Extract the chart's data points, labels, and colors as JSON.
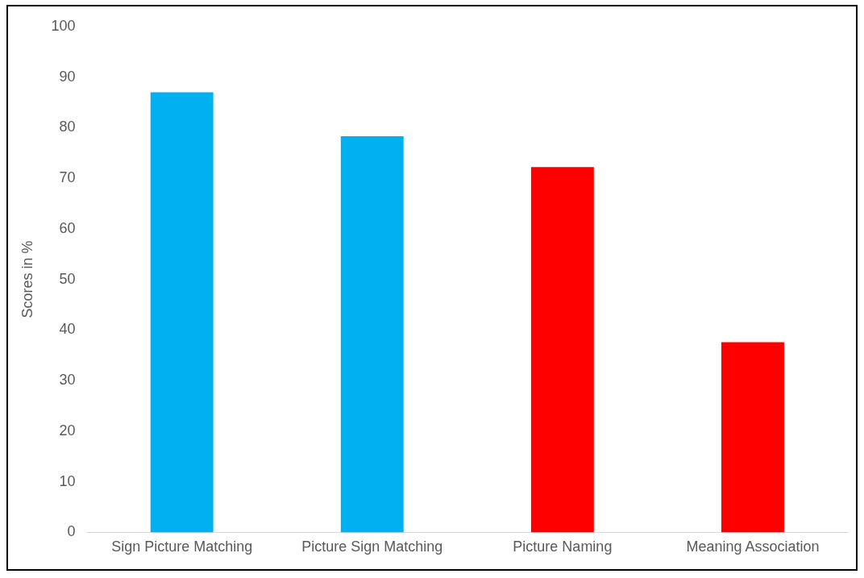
{
  "chart_data": {
    "type": "bar",
    "ylabel": "Scores in %",
    "categories": [
      "Sign Picture Matching",
      "Picture Sign Matching",
      "Picture Naming",
      "Meaning Association"
    ],
    "values": [
      87,
      78.3,
      72.2,
      37.6
    ],
    "colors": [
      "#00b0f0",
      "#00b0f0",
      "#ff0000",
      "#ff0000"
    ],
    "ylim": [
      0,
      100
    ],
    "yticks": [
      0,
      10,
      20,
      30,
      40,
      50,
      60,
      70,
      80,
      90,
      100
    ],
    "grid": false,
    "legend": false
  }
}
